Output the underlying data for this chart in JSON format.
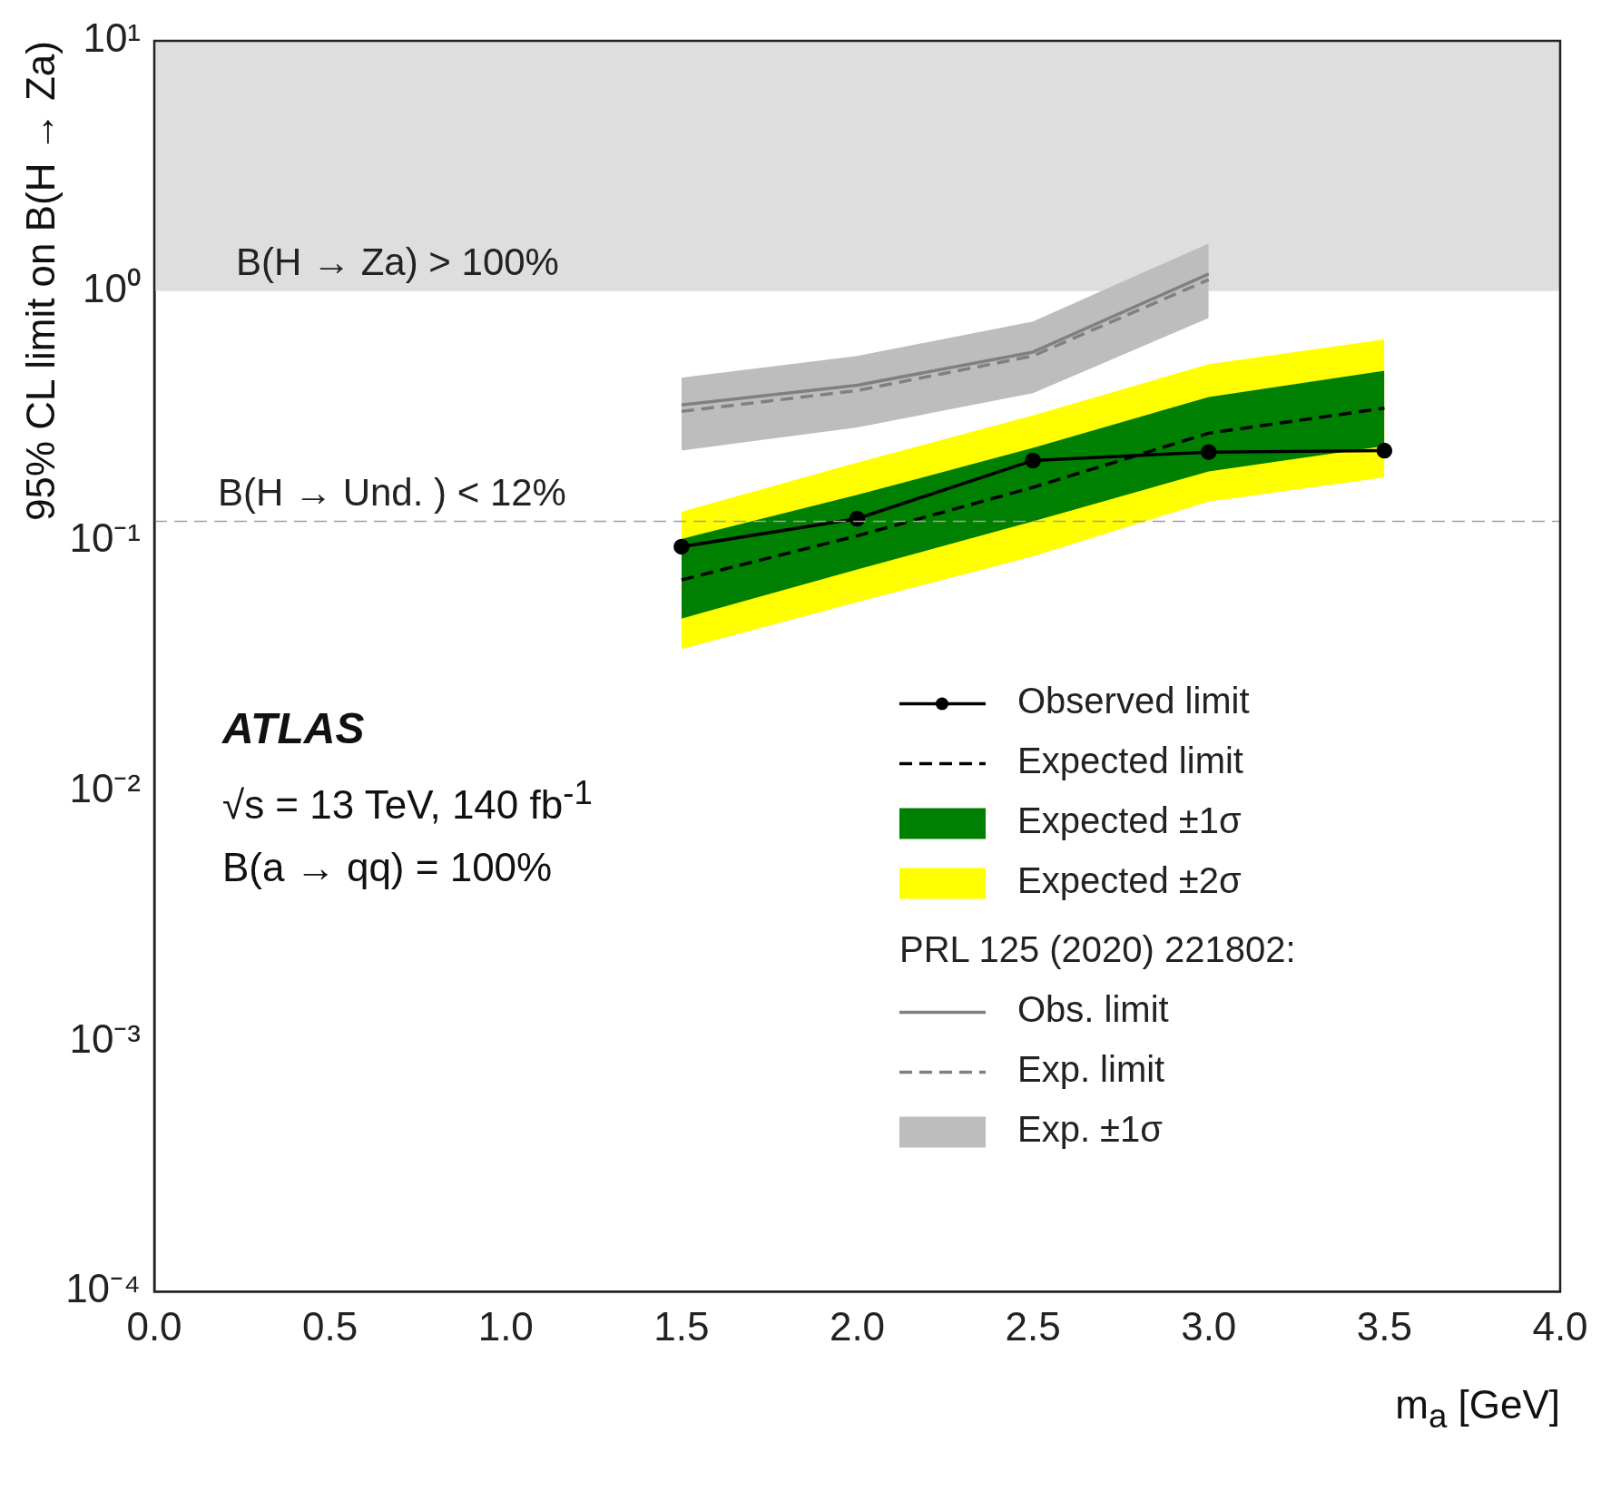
{
  "chart_data": {
    "type": "line",
    "xlabel": "m$_{a}$ [GeV]",
    "ylabel": "95% CL limit on B(H → Za)",
    "log": "y",
    "xlim": [
      0,
      4
    ],
    "xticks": [
      {
        "value": 0,
        "label": "0.0"
      },
      {
        "value": 0.5,
        "label": "0.5"
      },
      {
        "value": 1,
        "label": "1.0"
      },
      {
        "value": 1.5,
        "label": "1.5"
      },
      {
        "value": 2,
        "label": "2.0"
      },
      {
        "value": 2.5,
        "label": "2.5"
      },
      {
        "value": 3,
        "label": "3.0"
      },
      {
        "value": 3.5,
        "label": "3.5"
      },
      {
        "value": 4,
        "label": "4.0"
      }
    ],
    "ylim": [
      0.0001,
      10
    ],
    "yticks": [
      {
        "value": 0.0001,
        "label": "10⁻⁴"
      },
      {
        "value": 0.001,
        "label": "10⁻³"
      },
      {
        "value": 0.01,
        "label": "10⁻²"
      },
      {
        "value": 0.1,
        "label": "10⁻¹"
      },
      {
        "value": 1,
        "label": "10⁰"
      },
      {
        "value": 10,
        "label": "10¹"
      }
    ],
    "grid": false,
    "legend": "bottom right",
    "x": [
      1.5,
      2.0,
      2.5,
      3.0,
      3.5
    ],
    "series": [
      {
        "name": "Observed limit",
        "type": "line",
        "color": "#000000",
        "marker": "circle",
        "line_style": "solid",
        "values": [
          0.095,
          0.123,
          0.21,
          0.227,
          0.23
        ]
      },
      {
        "name": "Expected limit",
        "type": "line",
        "color": "#000000",
        "line_style": "dashed",
        "values": [
          0.07,
          0.105,
          0.164,
          0.27,
          0.34
        ]
      },
      {
        "name": "Expected ±1σ",
        "type": "line",
        "color": "#008000",
        "values": [
          null,
          null,
          null,
          null,
          null
        ],
        "lower": [
          0.049,
          0.077,
          0.12,
          0.19,
          0.24
        ],
        "upper": [
          0.102,
          0.153,
          0.236,
          0.377,
          0.48
        ]
      },
      {
        "name": "Expected ±2σ",
        "type": "line",
        "color": "#ffff00",
        "values": [
          null,
          null,
          null,
          null,
          null
        ],
        "lower": [
          0.037,
          0.057,
          0.087,
          0.144,
          0.18
        ],
        "upper": [
          0.131,
          0.206,
          0.318,
          0.51,
          0.64
        ]
      },
      {
        "name": "Obs. limit",
        "type": "line",
        "color": "#808080",
        "line_style": "solid",
        "x": [
          1.5,
          2.0,
          2.5,
          3.0
        ],
        "values": [
          0.35,
          0.42,
          0.57,
          1.17
        ]
      },
      {
        "name": "Exp. limit",
        "type": "line",
        "color": "#808080",
        "line_style": "dashed",
        "x": [
          1.5,
          2.0,
          2.5,
          3.0
        ],
        "values": [
          0.33,
          0.4,
          0.55,
          1.11
        ]
      },
      {
        "name": "Exp. ±1σ",
        "type": "line",
        "color": "#bdbdbd",
        "x": [
          1.5,
          2.0,
          2.5,
          3.0
        ],
        "values": [
          null,
          null,
          null,
          null
        ],
        "lower": [
          0.23,
          0.285,
          0.39,
          0.78
        ],
        "upper": [
          0.45,
          0.55,
          0.755,
          1.55
        ]
      }
    ],
    "bands": [
      {
        "axis": "y",
        "from": 1,
        "to": 10,
        "label": "B(H → Za) > 100%",
        "color": "#dedede"
      }
    ],
    "ref_lines": [
      {
        "axis": "y",
        "value": 0.12,
        "label": "B(H → Und. ) < 12%",
        "color": "#a0a0a0",
        "line_style": "dashed"
      }
    ],
    "annotations": [
      "ATLAS",
      "√s = 13 TeV, 140 fb$^{-1}$",
      "B(a → qq) = 100%",
      "PRL 125 (2020) 221802:"
    ]
  }
}
